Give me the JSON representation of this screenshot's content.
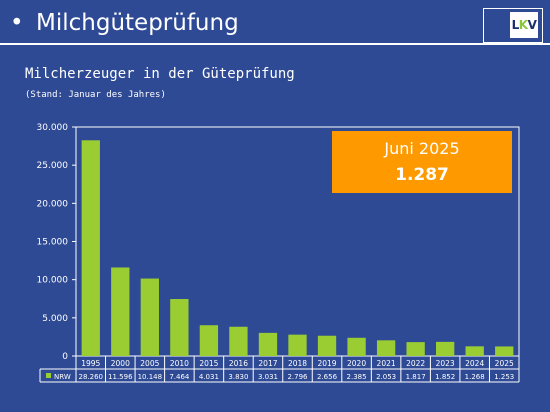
{
  "slide": {
    "bullet": "•",
    "title": "Milchgüteprüfung",
    "logo": {
      "l": "L",
      "k": "K",
      "v": "V"
    }
  },
  "callout": {
    "label": "Juni 2025",
    "value": "1.287"
  },
  "colors": {
    "background": "#2e4a95",
    "bar": "#9acd32",
    "callout": "#ff9900"
  },
  "chart_data": {
    "type": "bar",
    "title": "Milcherzeuger in der Güteprüfung",
    "subtitle": "(Stand: Januar des Jahres)",
    "categories": [
      "1995",
      "2000",
      "2005",
      "2010",
      "2015",
      "2016",
      "2017",
      "2018",
      "2019",
      "2020",
      "2021",
      "2022",
      "2023",
      "2024",
      "2025"
    ],
    "series": [
      {
        "name": "NRW",
        "values": [
          28260,
          11596,
          10148,
          7464,
          4031,
          3830,
          3031,
          2796,
          2656,
          2385,
          2053,
          1817,
          1852,
          1268,
          1253
        ],
        "labels": [
          "28.260",
          "11.596",
          "10.148",
          "7.464",
          "4.031",
          "3.830",
          "3.031",
          "2.796",
          "2.656",
          "2.385",
          "2.053",
          "1.817",
          "1.852",
          "1.268",
          "1.253"
        ]
      }
    ],
    "yticks": [
      "0",
      "5.000",
      "10.000",
      "15.000",
      "20.000",
      "25.000",
      "30.000"
    ],
    "ylim": [
      0,
      30000
    ],
    "grid": false,
    "legend": "data-table"
  }
}
